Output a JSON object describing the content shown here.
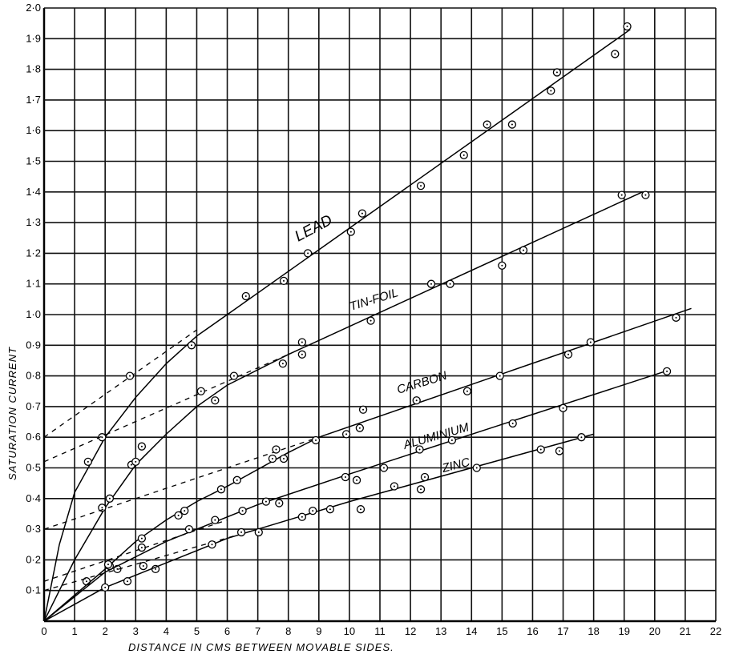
{
  "chart_data": {
    "type": "scatter",
    "title": "",
    "xlabel": "Distance in cms between movable sides.",
    "ylabel": "Saturation Current",
    "xlim": [
      0,
      22
    ],
    "ylim": [
      0,
      2.0
    ],
    "grid": true,
    "x_ticks": [
      "0",
      "1",
      "2",
      "3",
      "4",
      "5",
      "6",
      "7",
      "8",
      "9",
      "10",
      "11",
      "12",
      "13",
      "14",
      "15",
      "16",
      "17",
      "18",
      "19",
      "20",
      "21",
      "22"
    ],
    "y_ticks": [
      "0·1",
      "0·2",
      "0·3",
      "0·4",
      "0·5",
      "0·6",
      "0·7",
      "0·8",
      "0·9",
      "1·0",
      "1·1",
      "1·2",
      "1·3",
      "1·4",
      "1·5",
      "1·6",
      "1·7",
      "1·8",
      "1·9",
      "2·0"
    ],
    "line_color": "#000000",
    "series": [
      {
        "name": "Lead",
        "points": [
          [
            1.44,
            0.52
          ],
          [
            1.9,
            0.6
          ],
          [
            2.81,
            0.8
          ],
          [
            4.83,
            0.9
          ],
          [
            6.61,
            1.06
          ],
          [
            7.85,
            1.11
          ],
          [
            8.64,
            1.2
          ],
          [
            10.05,
            1.27
          ],
          [
            10.42,
            1.33
          ],
          [
            12.34,
            1.42
          ],
          [
            13.75,
            1.52
          ],
          [
            14.51,
            1.62
          ],
          [
            15.33,
            1.62
          ],
          [
            16.6,
            1.73
          ],
          [
            16.8,
            1.79
          ],
          [
            18.7,
            1.85
          ],
          [
            19.1,
            1.94
          ]
        ],
        "curve": [
          [
            0,
            0
          ],
          [
            0.5,
            0.25
          ],
          [
            1,
            0.42
          ],
          [
            2,
            0.6
          ],
          [
            3,
            0.73
          ],
          [
            4,
            0.84
          ],
          [
            5,
            0.93
          ],
          [
            6,
            1.0
          ],
          [
            19.2,
            1.93
          ]
        ],
        "extrapolation": [
          [
            0,
            0.6
          ],
          [
            5,
            0.95
          ]
        ]
      },
      {
        "name": "Tin-Foil",
        "points": [
          [
            1.39,
            0.13
          ],
          [
            1.9,
            0.37
          ],
          [
            2.15,
            0.4
          ],
          [
            2.86,
            0.51
          ],
          [
            3.0,
            0.52
          ],
          [
            3.2,
            0.57
          ],
          [
            5.14,
            0.75
          ],
          [
            5.6,
            0.72
          ],
          [
            6.22,
            0.8
          ],
          [
            7.82,
            0.84
          ],
          [
            8.45,
            0.87
          ],
          [
            8.45,
            0.91
          ],
          [
            10.7,
            0.98
          ],
          [
            12.68,
            1.1
          ],
          [
            13.3,
            1.1
          ],
          [
            15.0,
            1.16
          ],
          [
            15.7,
            1.21
          ],
          [
            18.92,
            1.39
          ],
          [
            19.7,
            1.39
          ]
        ],
        "curve": [
          [
            0,
            0
          ],
          [
            1,
            0.2
          ],
          [
            2,
            0.37
          ],
          [
            3,
            0.51
          ],
          [
            4,
            0.61
          ],
          [
            5,
            0.7
          ],
          [
            6,
            0.77
          ],
          [
            8,
            0.87
          ],
          [
            19.6,
            1.4
          ]
        ],
        "extrapolation": [
          [
            0,
            0.52
          ],
          [
            8,
            0.87
          ]
        ]
      },
      {
        "name": "Carbon",
        "points": [
          [
            2.15,
            0.18
          ],
          [
            2.4,
            0.17
          ],
          [
            3.2,
            0.27
          ],
          [
            3.2,
            0.24
          ],
          [
            3.25,
            0.18
          ],
          [
            3.65,
            0.17
          ],
          [
            4.4,
            0.345
          ],
          [
            4.6,
            0.36
          ],
          [
            5.8,
            0.43
          ],
          [
            6.32,
            0.46
          ],
          [
            7.6,
            0.56
          ],
          [
            7.48,
            0.53
          ],
          [
            7.85,
            0.53
          ],
          [
            8.9,
            0.59
          ],
          [
            9.9,
            0.61
          ],
          [
            10.34,
            0.63
          ],
          [
            10.45,
            0.69
          ],
          [
            12.2,
            0.72
          ],
          [
            13.86,
            0.75
          ],
          [
            14.93,
            0.8
          ],
          [
            17.17,
            0.87
          ],
          [
            17.9,
            0.91
          ],
          [
            20.7,
            0.99
          ]
        ],
        "curve": [
          [
            0,
            0
          ],
          [
            2,
            0.17
          ],
          [
            3,
            0.26
          ],
          [
            4,
            0.33
          ],
          [
            5,
            0.39
          ],
          [
            6,
            0.44
          ],
          [
            8,
            0.55
          ],
          [
            9,
            0.6
          ],
          [
            21.2,
            1.02
          ]
        ],
        "extrapolation": [
          [
            0,
            0.3
          ],
          [
            9,
            0.6
          ]
        ]
      },
      {
        "name": "Aluminium",
        "points": [
          [
            2.1,
            0.185
          ],
          [
            4.75,
            0.3
          ],
          [
            5.6,
            0.33
          ],
          [
            6.5,
            0.36
          ],
          [
            7.27,
            0.39
          ],
          [
            7.7,
            0.385
          ],
          [
            9.87,
            0.47
          ],
          [
            10.24,
            0.46
          ],
          [
            11.13,
            0.5
          ],
          [
            12.3,
            0.56
          ],
          [
            13.36,
            0.59
          ],
          [
            15.35,
            0.645
          ],
          [
            17.0,
            0.695
          ],
          [
            20.4,
            0.815
          ]
        ],
        "curve": [
          [
            0,
            0
          ],
          [
            2,
            0.16
          ],
          [
            4,
            0.26
          ],
          [
            5,
            0.3
          ],
          [
            7,
            0.38
          ],
          [
            10,
            0.48
          ],
          [
            20.5,
            0.82
          ]
        ],
        "extrapolation": [
          [
            0,
            0.13
          ],
          [
            6,
            0.33
          ]
        ]
      },
      {
        "name": "Zinc",
        "points": [
          [
            2.0,
            0.11
          ],
          [
            2.73,
            0.13
          ],
          [
            5.5,
            0.25
          ],
          [
            6.46,
            0.29
          ],
          [
            7.03,
            0.29
          ],
          [
            8.45,
            0.34
          ],
          [
            8.8,
            0.36
          ],
          [
            9.37,
            0.365
          ],
          [
            10.37,
            0.365
          ],
          [
            11.47,
            0.44
          ],
          [
            12.34,
            0.43
          ],
          [
            12.47,
            0.47
          ],
          [
            14.17,
            0.5
          ],
          [
            16.27,
            0.56
          ],
          [
            16.88,
            0.555
          ],
          [
            17.6,
            0.6
          ]
        ],
        "curve": [
          [
            0,
            0
          ],
          [
            2,
            0.11
          ],
          [
            4,
            0.19
          ],
          [
            6,
            0.27
          ],
          [
            10,
            0.39
          ],
          [
            18,
            0.61
          ]
        ],
        "extrapolation": [
          [
            0,
            0.1
          ],
          [
            7,
            0.3
          ]
        ]
      }
    ],
    "series_labels": [
      "LEAD",
      "TIN-FOIL",
      "CARBON",
      "ALUMINIUM",
      "ZINC"
    ]
  }
}
